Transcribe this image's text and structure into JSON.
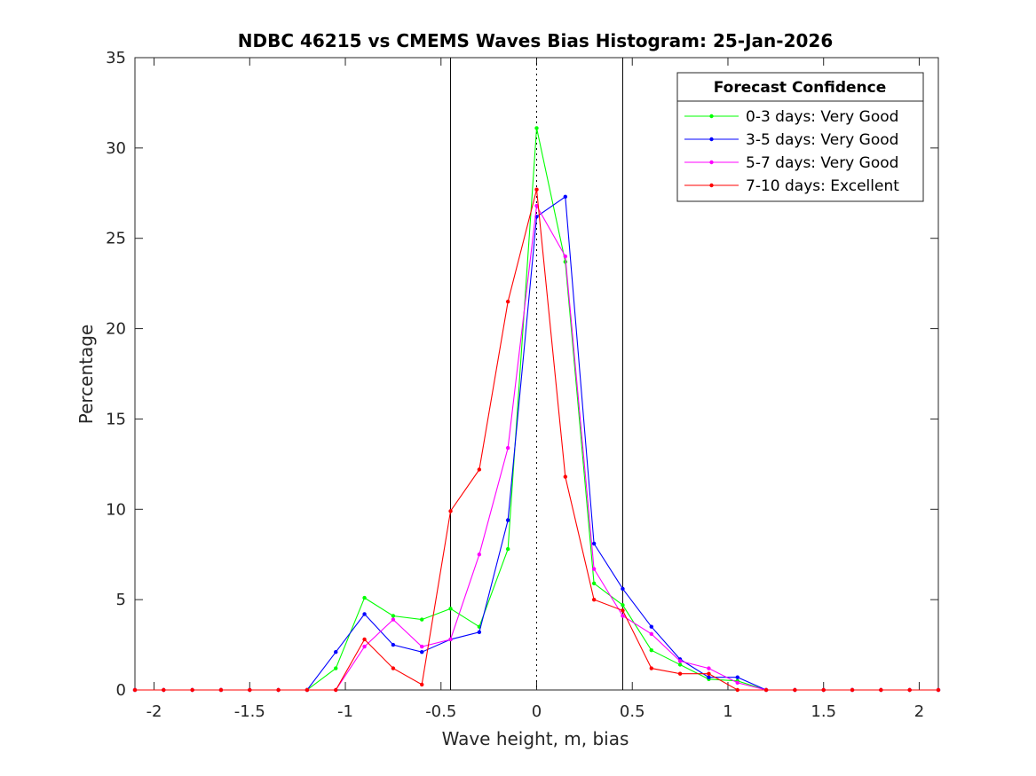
{
  "chart_data": {
    "type": "line",
    "title": "NDBC 46215 vs CMEMS Waves Bias Histogram: 25-Jan-2026",
    "xlabel": "Wave height, m, bias",
    "ylabel": "Percentage",
    "xlim": [
      -2.1,
      2.1
    ],
    "ylim": [
      0,
      35
    ],
    "xticks": [
      -2,
      -1.5,
      -1,
      -0.5,
      0,
      0.5,
      1,
      1.5,
      2
    ],
    "xtick_labels": [
      "-2",
      "-1.5",
      "-1",
      "-0.5",
      "0",
      "0.5",
      "1",
      "1.5",
      "2"
    ],
    "yticks": [
      0,
      5,
      10,
      15,
      20,
      25,
      30,
      35
    ],
    "ytick_labels": [
      "0",
      "5",
      "10",
      "15",
      "20",
      "25",
      "30",
      "35"
    ],
    "vlines_solid": [
      -0.45,
      0.45
    ],
    "vline_dotted": 0,
    "legend": {
      "title": "Forecast Confidence",
      "location": "top-right"
    },
    "x": [
      -2.1,
      -1.95,
      -1.8,
      -1.65,
      -1.5,
      -1.35,
      -1.2,
      -1.05,
      -0.9,
      -0.75,
      -0.6,
      -0.45,
      -0.3,
      -0.15,
      0,
      0.15,
      0.3,
      0.45,
      0.6,
      0.75,
      0.9,
      1.05,
      1.2,
      1.35,
      1.5,
      1.65,
      1.8,
      1.95,
      2.1
    ],
    "series": [
      {
        "name": "0-3 days: Very Good",
        "color": "#00ff00",
        "values": [
          0,
          0,
          0,
          0,
          0,
          0,
          0,
          1.2,
          5.1,
          4.1,
          3.9,
          4.5,
          3.5,
          7.8,
          31.1,
          23.7,
          5.9,
          4.7,
          2.2,
          1.4,
          0.6,
          0.5,
          0,
          0,
          0,
          0,
          0,
          0,
          0
        ]
      },
      {
        "name": "3-5 days: Very Good",
        "color": "#0000ff",
        "values": [
          0,
          0,
          0,
          0,
          0,
          0,
          0,
          2.1,
          4.2,
          2.5,
          2.1,
          2.8,
          3.2,
          9.4,
          26.2,
          27.3,
          8.1,
          5.6,
          3.5,
          1.7,
          0.7,
          0.7,
          0,
          0,
          0,
          0,
          0,
          0,
          0
        ]
      },
      {
        "name": "5-7 days: Very Good",
        "color": "#ff00ff",
        "values": [
          0,
          0,
          0,
          0,
          0,
          0,
          0,
          0,
          2.4,
          3.9,
          2.4,
          2.8,
          7.5,
          13.4,
          26.8,
          24.0,
          6.7,
          4.1,
          3.1,
          1.6,
          1.2,
          0.4,
          0,
          0,
          0,
          0,
          0,
          0,
          0
        ]
      },
      {
        "name": "7-10 days: Excellent",
        "color": "#ff0000",
        "values": [
          0,
          0,
          0,
          0,
          0,
          0,
          0,
          0,
          2.8,
          1.2,
          0.3,
          9.9,
          12.2,
          21.5,
          27.7,
          11.8,
          5.0,
          4.4,
          1.2,
          0.9,
          0.9,
          0,
          0,
          0,
          0,
          0,
          0,
          0,
          0
        ]
      }
    ]
  }
}
